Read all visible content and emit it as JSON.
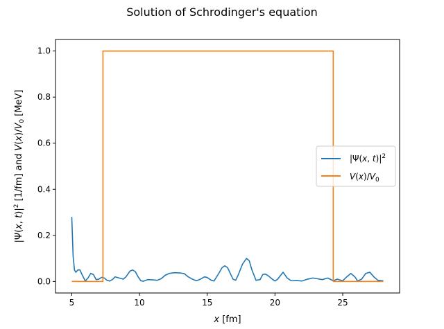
{
  "chart_data": {
    "type": "line",
    "title": "Solution of Schrodinger's equation",
    "xlabel": "x [fm]",
    "ylabel": "|Ψ(x,t)|² [1/fm] and V(x)/V₀ [MeV]",
    "xlim": [
      3.8,
      29.2
    ],
    "ylim": [
      -0.05,
      1.05
    ],
    "xticks": [
      5,
      10,
      15,
      20,
      25
    ],
    "yticks": [
      0.0,
      0.2,
      0.4,
      0.6,
      0.8,
      1.0
    ],
    "legend_position": "center-right",
    "grid": false,
    "series": [
      {
        "name": "|Ψ(x,t)|²",
        "color": "#1f77b4",
        "points": [
          [
            5.0,
            0.28
          ],
          [
            5.1,
            0.11
          ],
          [
            5.2,
            0.05
          ],
          [
            5.3,
            0.04
          ],
          [
            5.45,
            0.05
          ],
          [
            5.6,
            0.05
          ],
          [
            5.8,
            0.025
          ],
          [
            6.0,
            0.002
          ],
          [
            6.2,
            0.015
          ],
          [
            6.4,
            0.035
          ],
          [
            6.6,
            0.03
          ],
          [
            6.8,
            0.008
          ],
          [
            7.0,
            0.01
          ],
          [
            7.2,
            0.018
          ],
          [
            7.4,
            0.015
          ],
          [
            7.6,
            0.005
          ],
          [
            7.8,
            0.002
          ],
          [
            8.0,
            0.008
          ],
          [
            8.2,
            0.02
          ],
          [
            8.5,
            0.015
          ],
          [
            8.8,
            0.01
          ],
          [
            9.0,
            0.02
          ],
          [
            9.3,
            0.045
          ],
          [
            9.5,
            0.05
          ],
          [
            9.7,
            0.042
          ],
          [
            9.9,
            0.02
          ],
          [
            10.1,
            0.003
          ],
          [
            10.3,
            0.001
          ],
          [
            10.6,
            0.008
          ],
          [
            11.0,
            0.007
          ],
          [
            11.3,
            0.005
          ],
          [
            11.6,
            0.012
          ],
          [
            11.9,
            0.027
          ],
          [
            12.2,
            0.035
          ],
          [
            12.6,
            0.038
          ],
          [
            13.0,
            0.037
          ],
          [
            13.3,
            0.034
          ],
          [
            13.6,
            0.02
          ],
          [
            13.9,
            0.01
          ],
          [
            14.2,
            0.003
          ],
          [
            14.5,
            0.01
          ],
          [
            14.8,
            0.02
          ],
          [
            15.0,
            0.017
          ],
          [
            15.3,
            0.005
          ],
          [
            15.5,
            0.002
          ],
          [
            15.8,
            0.03
          ],
          [
            16.1,
            0.06
          ],
          [
            16.3,
            0.068
          ],
          [
            16.5,
            0.06
          ],
          [
            16.7,
            0.035
          ],
          [
            16.9,
            0.01
          ],
          [
            17.1,
            0.005
          ],
          [
            17.3,
            0.03
          ],
          [
            17.6,
            0.075
          ],
          [
            17.9,
            0.1
          ],
          [
            18.1,
            0.09
          ],
          [
            18.3,
            0.05
          ],
          [
            18.6,
            0.005
          ],
          [
            18.9,
            0.008
          ],
          [
            19.1,
            0.03
          ],
          [
            19.3,
            0.032
          ],
          [
            19.5,
            0.025
          ],
          [
            19.8,
            0.01
          ],
          [
            20.0,
            0.002
          ],
          [
            20.2,
            0.01
          ],
          [
            20.6,
            0.04
          ],
          [
            20.9,
            0.015
          ],
          [
            21.2,
            0.003
          ],
          [
            21.6,
            0.004
          ],
          [
            22.0,
            0.002
          ],
          [
            22.4,
            0.01
          ],
          [
            22.8,
            0.015
          ],
          [
            23.1,
            0.012
          ],
          [
            23.5,
            0.008
          ],
          [
            23.9,
            0.015
          ],
          [
            24.3,
            0.003
          ],
          [
            24.6,
            0.01
          ],
          [
            25.0,
            0.003
          ],
          [
            25.3,
            0.02
          ],
          [
            25.6,
            0.035
          ],
          [
            25.9,
            0.02
          ],
          [
            26.1,
            0.002
          ],
          [
            26.4,
            0.01
          ],
          [
            26.7,
            0.035
          ],
          [
            27.0,
            0.04
          ],
          [
            27.3,
            0.02
          ],
          [
            27.6,
            0.005
          ],
          [
            28.0,
            0.003
          ]
        ]
      },
      {
        "name": "V(x)/V₀",
        "color": "#ff7f0e",
        "points": [
          [
            5.0,
            0.0
          ],
          [
            7.3,
            0.0
          ],
          [
            7.3,
            1.0
          ],
          [
            24.3,
            1.0
          ],
          [
            24.3,
            0.0
          ],
          [
            28.0,
            0.0
          ]
        ]
      }
    ]
  }
}
